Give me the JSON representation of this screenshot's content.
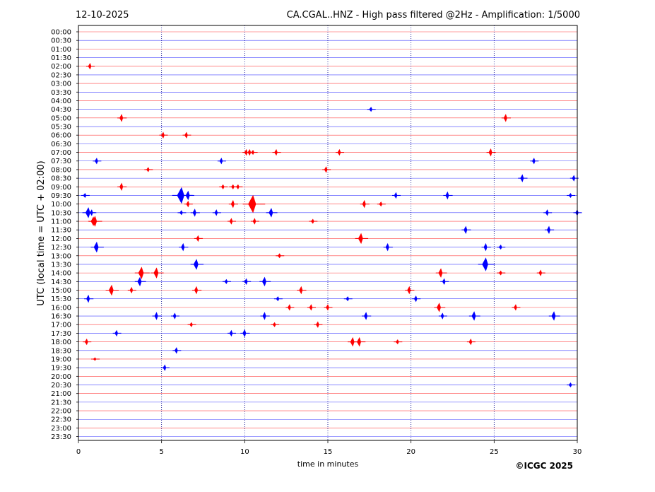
{
  "header": {
    "date": "12-10-2025",
    "title": "CA.CGAL..HNZ - High pass filtered @2Hz - Amplification: 1/5000"
  },
  "credit": "©ICGC 2025",
  "chart_data": {
    "type": "line",
    "xlabel": "time in minutes",
    "ylabel": "UTC (local time = UTC + 02:00)",
    "xlim": [
      0,
      30
    ],
    "xticks": [
      0,
      5,
      10,
      15,
      20,
      25,
      30
    ],
    "grid": "vertical dotted lines at 5, 10, 15, 20, 25",
    "colors": {
      "even_trace": "#ff0000",
      "odd_trace": "#0000ff"
    },
    "y_tick_labels": [
      "00:00",
      "00:30",
      "01:00",
      "01:30",
      "02:00",
      "02:30",
      "03:00",
      "03:30",
      "04:00",
      "04:30",
      "05:00",
      "05:30",
      "06:00",
      "06:30",
      "07:00",
      "07:30",
      "08:00",
      "08:30",
      "09:00",
      "09:30",
      "10:00",
      "10:30",
      "11:00",
      "11:30",
      "12:00",
      "12:30",
      "13:00",
      "13:30",
      "14:00",
      "14:30",
      "15:00",
      "15:30",
      "16:00",
      "16:30",
      "17:00",
      "17:30",
      "18:00",
      "18:30",
      "19:00",
      "19:30",
      "20:00",
      "20:30",
      "21:00",
      "21:30",
      "22:00",
      "22:30",
      "23:00",
      "23:30"
    ],
    "events": [
      {
        "row": 4,
        "x": 0.7,
        "amp": 4
      },
      {
        "row": 9,
        "x": 17.6,
        "amp": 3
      },
      {
        "row": 10,
        "x": 2.6,
        "amp": 5
      },
      {
        "row": 10,
        "x": 25.7,
        "amp": 5
      },
      {
        "row": 12,
        "x": 5.1,
        "amp": 4
      },
      {
        "row": 12,
        "x": 6.5,
        "amp": 4
      },
      {
        "row": 14,
        "x": 10.1,
        "amp": 4
      },
      {
        "row": 14,
        "x": 10.3,
        "amp": 4
      },
      {
        "row": 14,
        "x": 10.5,
        "amp": 3
      },
      {
        "row": 14,
        "x": 11.9,
        "amp": 4
      },
      {
        "row": 14,
        "x": 15.7,
        "amp": 4
      },
      {
        "row": 14,
        "x": 24.8,
        "amp": 5
      },
      {
        "row": 15,
        "x": 1.1,
        "amp": 4
      },
      {
        "row": 15,
        "x": 8.6,
        "amp": 4
      },
      {
        "row": 15,
        "x": 27.4,
        "amp": 4
      },
      {
        "row": 16,
        "x": 4.2,
        "amp": 3
      },
      {
        "row": 16,
        "x": 14.9,
        "amp": 4
      },
      {
        "row": 17,
        "x": 26.7,
        "amp": 5
      },
      {
        "row": 17,
        "x": 29.8,
        "amp": 4
      },
      {
        "row": 18,
        "x": 2.6,
        "amp": 5
      },
      {
        "row": 18,
        "x": 8.7,
        "amp": 3
      },
      {
        "row": 18,
        "x": 9.3,
        "amp": 3
      },
      {
        "row": 18,
        "x": 9.6,
        "amp": 3
      },
      {
        "row": 19,
        "x": 6.2,
        "amp": 11
      },
      {
        "row": 19,
        "x": 6.6,
        "amp": 6
      },
      {
        "row": 19,
        "x": 0.4,
        "amp": 3
      },
      {
        "row": 19,
        "x": 19.1,
        "amp": 4
      },
      {
        "row": 19,
        "x": 22.2,
        "amp": 5
      },
      {
        "row": 19,
        "x": 29.6,
        "amp": 3
      },
      {
        "row": 20,
        "x": 10.5,
        "amp": 12
      },
      {
        "row": 20,
        "x": 9.3,
        "amp": 5
      },
      {
        "row": 20,
        "x": 6.6,
        "amp": 4
      },
      {
        "row": 20,
        "x": 17.2,
        "amp": 5
      },
      {
        "row": 20,
        "x": 18.2,
        "amp": 3
      },
      {
        "row": 21,
        "x": 0.6,
        "amp": 7
      },
      {
        "row": 21,
        "x": 0.8,
        "amp": 4
      },
      {
        "row": 21,
        "x": 6.2,
        "amp": 3
      },
      {
        "row": 21,
        "x": 7.0,
        "amp": 5
      },
      {
        "row": 21,
        "x": 8.3,
        "amp": 4
      },
      {
        "row": 21,
        "x": 11.6,
        "amp": 6
      },
      {
        "row": 21,
        "x": 28.2,
        "amp": 4
      },
      {
        "row": 21,
        "x": 30.0,
        "amp": 4
      },
      {
        "row": 22,
        "x": 0.9,
        "amp": 6
      },
      {
        "row": 22,
        "x": 1.0,
        "amp": 7
      },
      {
        "row": 22,
        "x": 9.2,
        "amp": 4
      },
      {
        "row": 22,
        "x": 10.6,
        "amp": 4
      },
      {
        "row": 22,
        "x": 14.1,
        "amp": 3
      },
      {
        "row": 23,
        "x": 23.3,
        "amp": 5
      },
      {
        "row": 23,
        "x": 28.3,
        "amp": 5
      },
      {
        "row": 24,
        "x": 7.2,
        "amp": 4
      },
      {
        "row": 24,
        "x": 17.0,
        "amp": 7
      },
      {
        "row": 25,
        "x": 1.1,
        "amp": 7
      },
      {
        "row": 25,
        "x": 6.3,
        "amp": 5
      },
      {
        "row": 25,
        "x": 18.6,
        "amp": 5
      },
      {
        "row": 25,
        "x": 24.5,
        "amp": 5
      },
      {
        "row": 25,
        "x": 25.4,
        "amp": 3
      },
      {
        "row": 26,
        "x": 12.1,
        "amp": 3
      },
      {
        "row": 27,
        "x": 7.1,
        "amp": 7
      },
      {
        "row": 27,
        "x": 24.5,
        "amp": 9
      },
      {
        "row": 28,
        "x": 3.8,
        "amp": 8
      },
      {
        "row": 28,
        "x": 4.7,
        "amp": 7
      },
      {
        "row": 28,
        "x": 21.8,
        "amp": 6
      },
      {
        "row": 28,
        "x": 25.4,
        "amp": 3
      },
      {
        "row": 28,
        "x": 27.8,
        "amp": 4
      },
      {
        "row": 29,
        "x": 3.7,
        "amp": 6
      },
      {
        "row": 29,
        "x": 8.9,
        "amp": 3
      },
      {
        "row": 29,
        "x": 10.1,
        "amp": 4
      },
      {
        "row": 29,
        "x": 11.2,
        "amp": 6
      },
      {
        "row": 29,
        "x": 22.0,
        "amp": 4
      },
      {
        "row": 30,
        "x": 2.0,
        "amp": 7
      },
      {
        "row": 30,
        "x": 3.2,
        "amp": 4
      },
      {
        "row": 30,
        "x": 7.1,
        "amp": 5
      },
      {
        "row": 30,
        "x": 13.4,
        "amp": 5
      },
      {
        "row": 30,
        "x": 19.9,
        "amp": 5
      },
      {
        "row": 31,
        "x": 0.6,
        "amp": 5
      },
      {
        "row": 31,
        "x": 12.0,
        "amp": 3
      },
      {
        "row": 31,
        "x": 16.2,
        "amp": 3
      },
      {
        "row": 31,
        "x": 20.3,
        "amp": 4
      },
      {
        "row": 32,
        "x": 12.7,
        "amp": 4
      },
      {
        "row": 32,
        "x": 14.0,
        "amp": 4
      },
      {
        "row": 32,
        "x": 15.0,
        "amp": 4
      },
      {
        "row": 32,
        "x": 21.7,
        "amp": 6
      },
      {
        "row": 32,
        "x": 26.3,
        "amp": 4
      },
      {
        "row": 33,
        "x": 4.7,
        "amp": 5
      },
      {
        "row": 33,
        "x": 5.8,
        "amp": 4
      },
      {
        "row": 33,
        "x": 11.2,
        "amp": 5
      },
      {
        "row": 33,
        "x": 17.3,
        "amp": 5
      },
      {
        "row": 33,
        "x": 21.9,
        "amp": 4
      },
      {
        "row": 33,
        "x": 23.8,
        "amp": 6
      },
      {
        "row": 33,
        "x": 28.6,
        "amp": 6
      },
      {
        "row": 34,
        "x": 6.8,
        "amp": 3
      },
      {
        "row": 34,
        "x": 11.8,
        "amp": 3
      },
      {
        "row": 34,
        "x": 14.4,
        "amp": 4
      },
      {
        "row": 35,
        "x": 2.3,
        "amp": 4
      },
      {
        "row": 35,
        "x": 9.2,
        "amp": 4
      },
      {
        "row": 35,
        "x": 10.0,
        "amp": 5
      },
      {
        "row": 36,
        "x": 0.5,
        "amp": 4
      },
      {
        "row": 36,
        "x": 16.5,
        "amp": 6
      },
      {
        "row": 36,
        "x": 16.9,
        "amp": 6
      },
      {
        "row": 36,
        "x": 19.2,
        "amp": 3
      },
      {
        "row": 36,
        "x": 23.6,
        "amp": 4
      },
      {
        "row": 37,
        "x": 5.9,
        "amp": 4
      },
      {
        "row": 38,
        "x": 1.0,
        "amp": 2
      },
      {
        "row": 39,
        "x": 5.2,
        "amp": 4
      },
      {
        "row": 41,
        "x": 29.6,
        "amp": 3
      }
    ]
  }
}
